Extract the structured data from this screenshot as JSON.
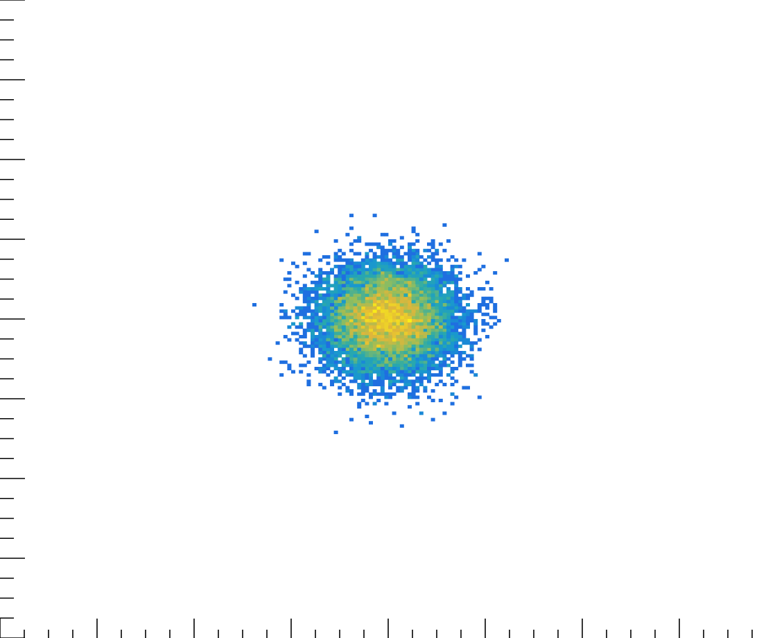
{
  "chart_data": {
    "type": "heatmap",
    "title": "",
    "xlabel": "",
    "ylabel": "",
    "xlim": [
      -4,
      4
    ],
    "ylim": [
      -4,
      4
    ],
    "grid": false,
    "legend": "none",
    "colorscale": "parula",
    "colors": {
      "low": "#1f6fe0",
      "mid": "#2aa6b8",
      "high": "#e0b63a",
      "peak": "#fbee17"
    },
    "distribution": {
      "kind": "2d-gaussian",
      "center": [
        0.0,
        0.0
      ],
      "sigma": [
        0.34,
        0.34
      ],
      "entries": 10000
    },
    "x_ticks": {
      "major_step": 1,
      "minor_per_major": 4,
      "labels": []
    },
    "y_ticks": {
      "major_step": 1,
      "minor_per_major": 4,
      "labels": []
    }
  }
}
